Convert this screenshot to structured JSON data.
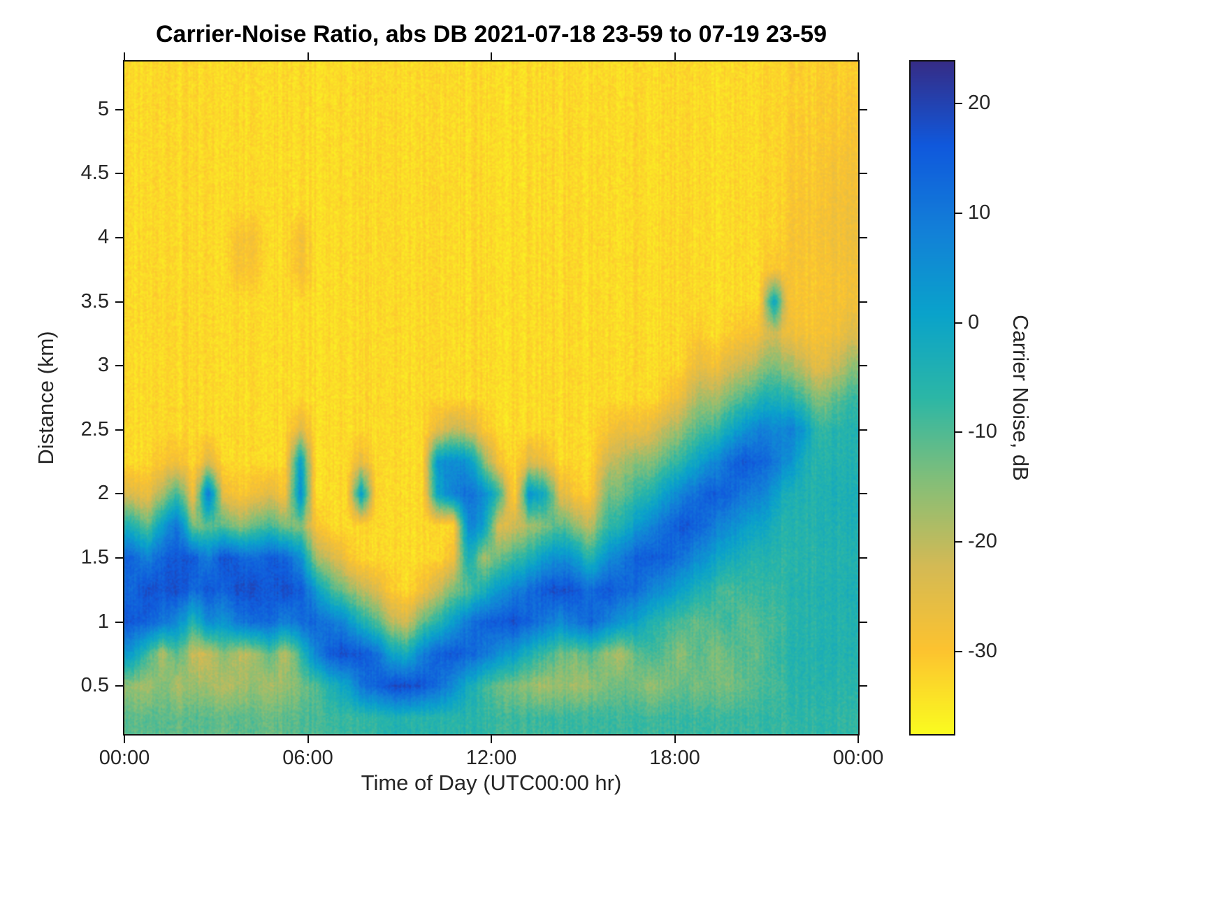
{
  "chart_data": {
    "type": "heatmap",
    "title": "Carrier-Noise Ratio, abs DB 2021-07-18 23-59 to 07-19 23-59",
    "xlabel": "Time of Day (UTC00:00 hr)",
    "ylabel": "Distance (km)",
    "colorbar_label": "Carrier Noise, dB",
    "x_tick_labels": [
      "00:00",
      "06:00",
      "12:00",
      "18:00",
      "00:00"
    ],
    "x_ticks_hours": [
      0,
      6,
      12,
      18,
      24
    ],
    "y_tick_labels": [
      "0.5",
      "1",
      "1.5",
      "2",
      "2.5",
      "3",
      "3.5",
      "4",
      "4.5",
      "5"
    ],
    "y_ticks_km": [
      0.5,
      1,
      1.5,
      2,
      2.5,
      3,
      3.5,
      4,
      4.5,
      5
    ],
    "colorbar_tick_labels": [
      "20",
      "10",
      "0",
      "-10",
      "-20",
      "-30"
    ],
    "colorbar_ticks": [
      20,
      10,
      0,
      -10,
      -20,
      -30
    ],
    "clim": [
      -37.5,
      23.8
    ],
    "x_range_hours": [
      0,
      24
    ],
    "y_range_km": [
      0.125,
      5.375
    ],
    "colormap": "parula-reversed",
    "colormap_stops": [
      "#fafc20",
      "#fdc330",
      "#d4ba55",
      "#85bf78",
      "#2cb7a6",
      "#0aa3cb",
      "#1380d8",
      "#1059dd",
      "#362d87"
    ],
    "grid_spec": {
      "time_step_hours": 0.5,
      "time_start_hours": 0.25,
      "distance_step_km": 0.25,
      "distance_start_km": 0.25,
      "rows_bottom_to_top": true,
      "units": "dB"
    },
    "values_db_by_time_column": [
      [
        -11,
        -16,
        2,
        16,
        13,
        14,
        -4,
        -24,
        -33,
        -33,
        -33,
        -33,
        -33,
        -33,
        -33,
        -33,
        -33,
        -33,
        -33,
        -33,
        -33
      ],
      [
        -11,
        -18,
        -8,
        14,
        18,
        8,
        -12,
        -27,
        -33,
        -33,
        -33,
        -33,
        -33,
        -33,
        -33,
        -33,
        -33,
        -33,
        -33,
        -33,
        -33
      ],
      [
        -11,
        -14,
        -19,
        10,
        16,
        14,
        2,
        -18,
        -30,
        -33,
        -33,
        -33,
        -33,
        -33,
        -33,
        -33,
        -33,
        -33,
        -33,
        -33,
        -33
      ],
      [
        -12,
        -19,
        -10,
        6,
        18,
        16,
        11,
        -8,
        -28,
        -33,
        -33,
        -33,
        -33,
        -33,
        -33,
        -33,
        -33,
        -33,
        -33,
        -33,
        -33
      ],
      [
        -11,
        -16,
        -22,
        -6,
        12,
        16,
        -14,
        -28,
        -33,
        -33,
        -33,
        -33,
        -33,
        -33,
        -33,
        -33,
        -33,
        -33,
        -33,
        -33,
        -33
      ],
      [
        -11,
        -18,
        -22,
        6,
        16,
        8,
        -12,
        10,
        -24,
        -33,
        -33,
        -33,
        -33,
        -33,
        -33,
        -33,
        -33,
        -33,
        -33,
        -33,
        -33
      ],
      [
        -12,
        -19,
        -14,
        4,
        14,
        18,
        -10,
        -26,
        -33,
        -33,
        -33,
        -33,
        -33,
        -33,
        -33,
        -33,
        -33,
        -33,
        -33,
        -33,
        -33
      ],
      [
        -11,
        -18,
        -20,
        10,
        18,
        14,
        -16,
        -30,
        -33,
        -33,
        -33,
        -33,
        -33,
        -33,
        -29,
        -29,
        -33,
        -33,
        -33,
        -33,
        -33
      ],
      [
        -11,
        -16,
        -18,
        12,
        18,
        12,
        -12,
        -28,
        -33,
        -33,
        -33,
        -33,
        -33,
        -33,
        -30,
        -29,
        -33,
        -33,
        -33,
        -33,
        -33
      ],
      [
        -12,
        -18,
        -10,
        14,
        16,
        16,
        -8,
        -24,
        -33,
        -33,
        -33,
        -33,
        -33,
        -33,
        -33,
        -33,
        -33,
        -33,
        -33,
        -33,
        -33
      ],
      [
        -11,
        -16,
        -20,
        8,
        18,
        14,
        -14,
        -29,
        -33,
        -33,
        -33,
        -33,
        -33,
        -33,
        -33,
        -33,
        -33,
        -33,
        -33,
        -33,
        -33
      ],
      [
        -10,
        -14,
        -8,
        12,
        16,
        6,
        -14,
        6,
        2,
        -24,
        -33,
        -33,
        -33,
        -33,
        -28,
        -28,
        -33,
        -33,
        -33,
        -33,
        -33
      ],
      [
        -9,
        -10,
        8,
        14,
        4,
        -16,
        -28,
        -33,
        -33,
        -33,
        -33,
        -33,
        -33,
        -33,
        -33,
        -33,
        -33,
        -33,
        -33,
        -33,
        -33
      ],
      [
        -8,
        -4,
        16,
        10,
        -8,
        -22,
        -33,
        -33,
        -33,
        -33,
        -33,
        -33,
        -33,
        -33,
        -33,
        -33,
        -33,
        -33,
        -33,
        -33,
        -33
      ],
      [
        -8,
        0,
        18,
        6,
        -14,
        -28,
        -33,
        -33,
        -33,
        -33,
        -33,
        -33,
        -33,
        -33,
        -33,
        -33,
        -33,
        -33,
        -33,
        -33,
        -33
      ],
      [
        -8,
        10,
        16,
        -4,
        -20,
        -33,
        -33,
        2,
        -26,
        -33,
        -33,
        -33,
        -33,
        -33,
        -33,
        -33,
        -33,
        -33,
        -33,
        -33,
        -33
      ],
      [
        -7,
        14,
        12,
        -10,
        -24,
        -33,
        -33,
        -33,
        -33,
        -33,
        -33,
        -33,
        -33,
        -33,
        -33,
        -33,
        -33,
        -33,
        -33,
        -33,
        -33
      ],
      [
        -5,
        18,
        0,
        -20,
        -31,
        -33,
        -33,
        -33,
        -33,
        -33,
        -33,
        -33,
        -33,
        -33,
        -33,
        -33,
        -33,
        -33,
        -33,
        -33,
        -33
      ],
      [
        -5,
        19,
        -2,
        -22,
        -33,
        -33,
        -33,
        -33,
        -33,
        -33,
        -33,
        -33,
        -33,
        -33,
        -33,
        -33,
        -33,
        -33,
        -33,
        -33,
        -33
      ],
      [
        -6,
        16,
        8,
        -12,
        -28,
        -33,
        -33,
        -33,
        -33,
        -33,
        -33,
        -33,
        -33,
        -33,
        -33,
        -33,
        -33,
        -33,
        -33,
        -33,
        -33
      ],
      [
        -6,
        12,
        14,
        -6,
        -22,
        -33,
        -33,
        0,
        4,
        -26,
        -33,
        -33,
        -33,
        -33,
        -33,
        -33,
        -33,
        -33,
        -33,
        -33,
        -33
      ],
      [
        -6,
        6,
        16,
        2,
        -14,
        -28,
        -33,
        8,
        6,
        -20,
        -33,
        -33,
        -33,
        -33,
        -33,
        -33,
        -33,
        -33,
        -33,
        -33,
        -33
      ],
      [
        -6,
        -2,
        14,
        10,
        -10,
        -2,
        8,
        12,
        4,
        -22,
        -33,
        -33,
        -33,
        -33,
        -33,
        -33,
        -33,
        -33,
        -33,
        -33,
        -33
      ],
      [
        -7,
        -8,
        10,
        14,
        -4,
        -18,
        2,
        6,
        -14,
        -30,
        -33,
        -33,
        -33,
        -33,
        -33,
        -33,
        -33,
        -33,
        -33,
        -33,
        -33
      ],
      [
        -8,
        -12,
        6,
        16,
        4,
        -12,
        -24,
        -6,
        -28,
        -33,
        -33,
        -33,
        -33,
        -33,
        -33,
        -33,
        -33,
        -33,
        -33,
        -33,
        -33
      ],
      [
        -8,
        -14,
        2,
        18,
        8,
        -8,
        -22,
        -33,
        -33,
        -33,
        -33,
        -33,
        -33,
        -33,
        -33,
        -33,
        -33,
        -33,
        -33,
        -33,
        -33
      ],
      [
        -8,
        -16,
        -4,
        14,
        12,
        -4,
        -18,
        4,
        -24,
        -33,
        -33,
        -33,
        -33,
        -33,
        -33,
        -33,
        -33,
        -33,
        -33,
        -33,
        -33
      ],
      [
        -8,
        -18,
        -8,
        10,
        16,
        2,
        -14,
        -2,
        -26,
        -33,
        -33,
        -33,
        -33,
        -33,
        -33,
        -33,
        -33,
        -33,
        -33,
        -33,
        -33
      ],
      [
        -8,
        -16,
        -12,
        6,
        18,
        6,
        -10,
        -24,
        -33,
        -33,
        -33,
        -33,
        -33,
        -33,
        -33,
        -33,
        -33,
        -33,
        -33,
        -33,
        -33
      ],
      [
        -8,
        -18,
        -14,
        10,
        16,
        2,
        -16,
        -30,
        -33,
        -33,
        -33,
        -33,
        -33,
        -33,
        -33,
        -33,
        -33,
        -33,
        -33,
        -33,
        -33
      ],
      [
        -8,
        -16,
        -10,
        14,
        12,
        -6,
        -20,
        -31,
        -33,
        -33,
        -33,
        -33,
        -33,
        -33,
        -33,
        -33,
        -33,
        -33,
        -33,
        -33,
        -33
      ],
      [
        -8,
        -14,
        -16,
        8,
        16,
        4,
        -8,
        -14,
        -22,
        -30,
        -33,
        -33,
        -33,
        -33,
        -33,
        -33,
        -33,
        -33,
        -33,
        -33,
        -33
      ],
      [
        -8,
        -12,
        -18,
        4,
        14,
        10,
        -4,
        -12,
        -18,
        -26,
        -33,
        -33,
        -33,
        -33,
        -33,
        -33,
        -33,
        -33,
        -33,
        -33,
        -33
      ],
      [
        -8,
        -14,
        -12,
        0,
        12,
        14,
        2,
        -8,
        -16,
        -28,
        -33,
        -33,
        -33,
        -33,
        -33,
        -33,
        -33,
        -33,
        -33,
        -33,
        -33
      ],
      [
        -8,
        -16,
        -8,
        -4,
        8,
        16,
        8,
        -4,
        -14,
        -24,
        -33,
        -33,
        -33,
        -33,
        -33,
        -33,
        -33,
        -33,
        -33,
        -33,
        -33
      ],
      [
        -8,
        -14,
        -12,
        -8,
        4,
        14,
        12,
        2,
        -10,
        -20,
        -30,
        -33,
        -33,
        -33,
        -33,
        -33,
        -33,
        -33,
        -33,
        -33,
        -33
      ],
      [
        -8,
        -12,
        -16,
        -10,
        0,
        10,
        16,
        8,
        -6,
        -16,
        -26,
        -33,
        -33,
        -33,
        -33,
        -33,
        -33,
        -33,
        -33,
        -33,
        -33
      ],
      [
        -8,
        -14,
        -10,
        -12,
        -4,
        6,
        14,
        12,
        0,
        -10,
        -18,
        -26,
        -31,
        -33,
        -33,
        -33,
        -33,
        -33,
        -33,
        -33,
        -33
      ],
      [
        -8,
        -12,
        -14,
        -10,
        -6,
        2,
        10,
        16,
        6,
        -8,
        -18,
        -28,
        -33,
        -33,
        -33,
        -33,
        -33,
        -33,
        -33,
        -33,
        -33
      ],
      [
        -8,
        -14,
        -12,
        -8,
        -10,
        -2,
        6,
        14,
        12,
        -2,
        -14,
        -24,
        -31,
        -33,
        -33,
        -33,
        -33,
        -33,
        -33,
        -33,
        -33
      ],
      [
        -8,
        -12,
        -10,
        -12,
        -8,
        -4,
        2,
        10,
        16,
        4,
        -10,
        -22,
        -30,
        -33,
        -33,
        -33,
        -33,
        -33,
        -33,
        -33,
        -33
      ],
      [
        -8,
        -10,
        -12,
        -10,
        -8,
        -6,
        0,
        8,
        14,
        8,
        -6,
        -18,
        -28,
        -33,
        -33,
        -33,
        -33,
        -33,
        -33,
        -33,
        -33
      ],
      [
        -8,
        -10,
        -8,
        -10,
        -8,
        -6,
        -4,
        2,
        10,
        6,
        -4,
        -14,
        -22,
        0,
        -30,
        -33,
        -33,
        -33,
        -33,
        -33,
        -33
      ],
      [
        -8,
        -7,
        -6,
        -7,
        -6,
        -7,
        -6,
        -5,
        4,
        8,
        -6,
        -18,
        -28,
        -30,
        -30,
        -30,
        -31,
        -31,
        -32,
        -32,
        -32
      ],
      [
        -7,
        -6,
        -6,
        -6,
        -6,
        -6,
        -6,
        -5,
        -4,
        2,
        -10,
        -22,
        -29,
        -30,
        -30,
        -30,
        -30,
        -31,
        -31,
        -32,
        -32
      ],
      [
        -7,
        -6,
        -5,
        -6,
        -5,
        -6,
        -5,
        -5,
        -6,
        -8,
        -16,
        -26,
        -29,
        -30,
        -30,
        -29,
        -30,
        -30,
        -31,
        -31,
        -32
      ],
      [
        -7,
        -6,
        -5,
        -5,
        -5,
        -5,
        -5,
        -4,
        -5,
        -6,
        -12,
        -22,
        -28,
        -29,
        -29,
        -28,
        -28,
        -29,
        -30,
        -31,
        -31
      ],
      [
        -7,
        -6,
        -5,
        -5,
        -4,
        -5,
        -4,
        -4,
        -5,
        -5,
        -8,
        -16,
        -24,
        -28,
        -28,
        -27,
        -28,
        -28,
        -29,
        -30,
        -31
      ]
    ]
  }
}
